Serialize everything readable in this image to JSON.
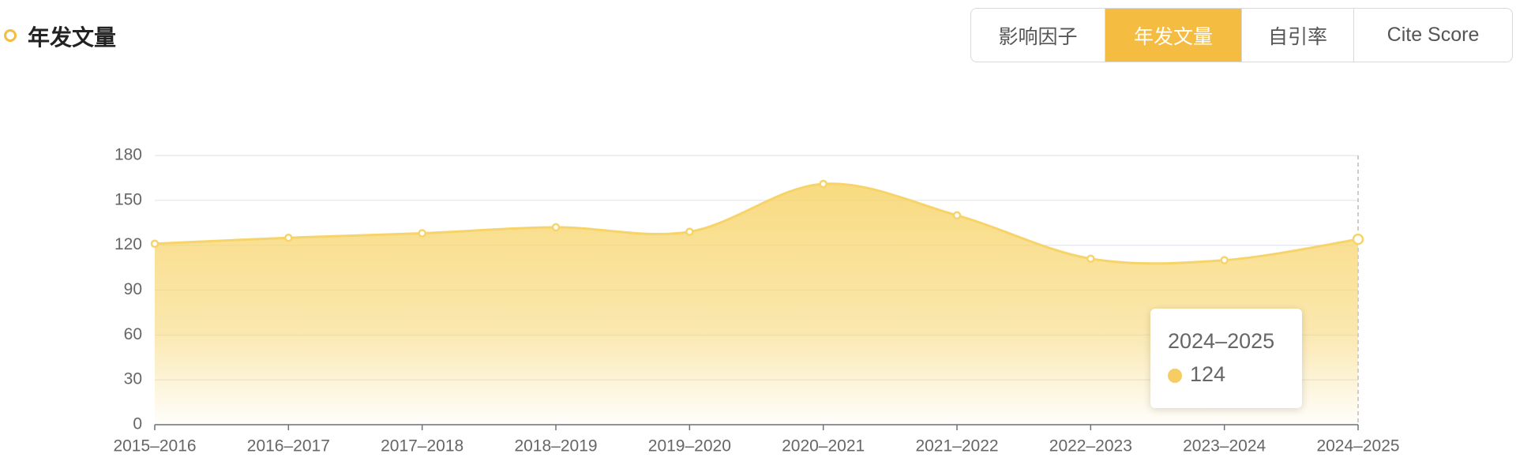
{
  "title": "年发文量",
  "tabs": [
    "影响因子",
    "年发文量",
    "自引率",
    "Cite Score"
  ],
  "active_tab": 1,
  "chart_data": {
    "type": "area",
    "categories": [
      "2015–2016",
      "2016–2017",
      "2017–2018",
      "2018–2019",
      "2019–2020",
      "2020–2021",
      "2021–2022",
      "2022–2023",
      "2023–2024",
      "2024–2025"
    ],
    "values": [
      121,
      125,
      128,
      132,
      129,
      161,
      140,
      111,
      110,
      124
    ],
    "color": "#f7d46a",
    "ylim": [
      0,
      180
    ],
    "yticks": [
      0,
      30,
      60,
      90,
      120,
      150,
      180
    ],
    "grid": true
  }
}
